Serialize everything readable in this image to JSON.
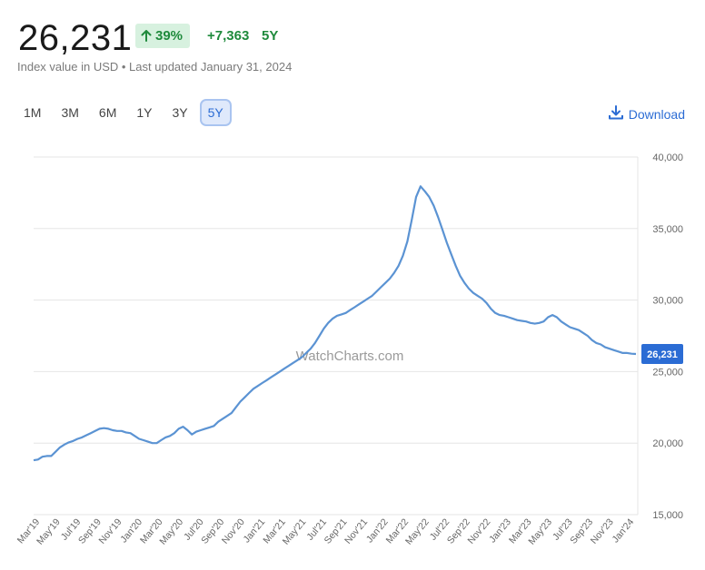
{
  "header": {
    "value": "26,231",
    "percent_change": "39%",
    "absolute_change": "+7,363",
    "period": "5Y",
    "subtitle": "Index value in USD • Last updated January 31, 2024",
    "accent_color": "#1f8a3c",
    "badge_bg": "#d7f1df"
  },
  "range_buttons": [
    "1M",
    "3M",
    "6M",
    "1Y",
    "3Y",
    "5Y"
  ],
  "active_range": "5Y",
  "download": {
    "label": "Download",
    "icon": "download-icon",
    "color": "#2b6cd4"
  },
  "chart_data": {
    "type": "line",
    "watermark": "WatchCharts.com",
    "line_color": "#5b93d3",
    "current_value_label": "26,231",
    "current_value_bg": "#2b6cd4",
    "ylim": [
      15000,
      40000
    ],
    "y_ticks": [
      "15,000",
      "20,000",
      "25,000",
      "30,000",
      "35,000",
      "40,000"
    ],
    "y_tick_values": [
      15000,
      20000,
      25000,
      30000,
      35000,
      40000
    ],
    "x_tick_labels": [
      "Mar'19",
      "May'19",
      "Jul'19",
      "Sep'19",
      "Nov'19",
      "Jan'20",
      "Mar'20",
      "May'20",
      "Jul'20",
      "Sep'20",
      "Nov'20",
      "Jan'21",
      "Mar'21",
      "May'21",
      "Jul'21",
      "Sep'21",
      "Nov'21",
      "Jan'22",
      "Mar'22",
      "May'22",
      "Jul'22",
      "Sep'22",
      "Nov'22",
      "Jan'23",
      "Mar'23",
      "May'23",
      "Jul'23",
      "Sep'23",
      "Nov'23",
      "Jan'24"
    ],
    "series": [
      {
        "values": [
          18800,
          18850,
          19050,
          19100,
          19100,
          19400,
          19700,
          19900,
          20050,
          20150,
          20300,
          20400,
          20550,
          20700,
          20850,
          21000,
          21050,
          21000,
          20900,
          20850,
          20850,
          20750,
          20700,
          20500,
          20300,
          20200,
          20100,
          20000,
          20000,
          20200,
          20400,
          20500,
          20700,
          21000,
          21150,
          20900,
          20600,
          20800,
          20900,
          21000,
          21100,
          21200,
          21500,
          21700,
          21900,
          22100,
          22500,
          22900,
          23200,
          23500,
          23800,
          24000,
          24200,
          24400,
          24600,
          24800,
          25000,
          25200,
          25400,
          25600,
          25800,
          26000,
          26300,
          26600,
          27000,
          27500,
          28000,
          28400,
          28700,
          28900,
          29000,
          29100,
          29300,
          29500,
          29700,
          29900,
          30100,
          30300,
          30600,
          30900,
          31200,
          31500,
          31900,
          32400,
          33100,
          34100,
          35600,
          37200,
          37950,
          37600,
          37200,
          36600,
          35800,
          34900,
          34000,
          33200,
          32400,
          31700,
          31200,
          30800,
          30500,
          30300,
          30100,
          29800,
          29400,
          29100,
          28950,
          28900,
          28800,
          28700,
          28600,
          28550,
          28500,
          28400,
          28350,
          28400,
          28500,
          28800,
          28950,
          28800,
          28500,
          28300,
          28100,
          28000,
          27900,
          27700,
          27500,
          27200,
          27000,
          26900,
          26700,
          26600,
          26500,
          26400,
          26300,
          26300,
          26250,
          26231
        ]
      }
    ],
    "grid": true
  }
}
